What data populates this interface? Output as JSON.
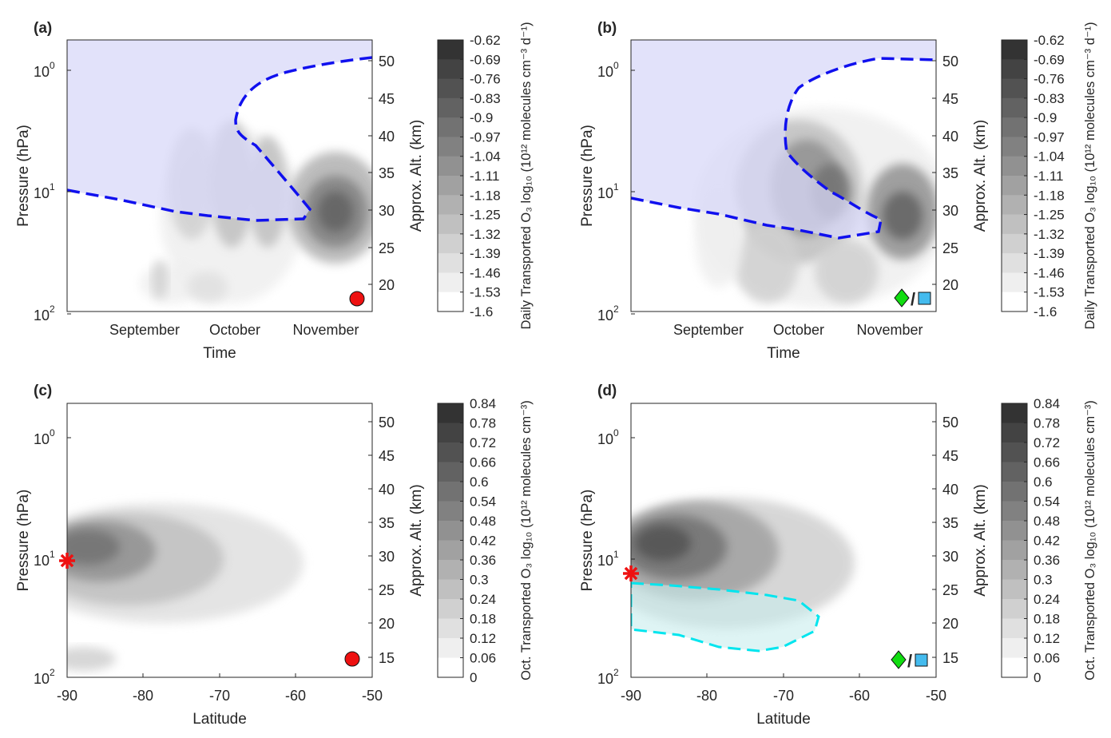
{
  "chart_data": [
    {
      "panel": "(a)",
      "type": "heatmap",
      "xlabel": "Time",
      "ylabel": "Pressure (hPa)",
      "y2label": "Approx. Alt. (km)",
      "xticks": [
        "September",
        "October",
        "November"
      ],
      "yticks": [
        {
          "base": "10",
          "exp": "0"
        },
        {
          "base": "10",
          "exp": "1"
        },
        {
          "base": "10",
          "exp": "2"
        }
      ],
      "y2ticks": [
        "50",
        "45",
        "40",
        "35",
        "30",
        "25",
        "20"
      ],
      "colorbar": {
        "label": "Daily Transported O₃ log₁₀ (10¹² molecules cm⁻³ d⁻¹)",
        "ticks": [
          "-0.62",
          "-0.69",
          "-0.76",
          "-0.83",
          "-0.9",
          "-0.97",
          "-1.04",
          "-1.11",
          "-1.18",
          "-1.25",
          "-1.32",
          "-1.39",
          "-1.46",
          "-1.53",
          "-1.6"
        ],
        "range": [
          -1.6,
          -0.62
        ]
      },
      "markers": [
        "red-circle"
      ],
      "shaded_region": "blue dashed contour (upper-left)"
    },
    {
      "panel": "(b)",
      "type": "heatmap",
      "xlabel": "Time",
      "ylabel": "Pressure (hPa)",
      "y2label": "Approx. Alt. (km)",
      "xticks": [
        "September",
        "October",
        "November"
      ],
      "yticks": [
        {
          "base": "10",
          "exp": "0"
        },
        {
          "base": "10",
          "exp": "1"
        },
        {
          "base": "10",
          "exp": "2"
        }
      ],
      "y2ticks": [
        "50",
        "45",
        "40",
        "35",
        "30",
        "25",
        "20"
      ],
      "colorbar": {
        "label": "Daily Transported O₃ log₁₀ (10¹² molecules cm⁻³ d⁻¹)",
        "ticks": [
          "-0.62",
          "-0.69",
          "-0.76",
          "-0.83",
          "-0.9",
          "-0.97",
          "-1.04",
          "-1.11",
          "-1.18",
          "-1.25",
          "-1.32",
          "-1.39",
          "-1.46",
          "-1.53",
          "-1.6"
        ],
        "range": [
          -1.6,
          -0.62
        ]
      },
      "markers": [
        "green-diamond",
        "blue-square"
      ],
      "marker_separator": "/",
      "shaded_region": "blue dashed contour (upper-left)"
    },
    {
      "panel": "(c)",
      "type": "heatmap",
      "xlabel": "Latitude",
      "ylabel": "Pressure (hPa)",
      "y2label": "Approx. Alt. (km)",
      "xticks": [
        "-90",
        "-80",
        "-70",
        "-60",
        "-50"
      ],
      "yticks": [
        {
          "base": "10",
          "exp": "0"
        },
        {
          "base": "10",
          "exp": "1"
        },
        {
          "base": "10",
          "exp": "2"
        }
      ],
      "y2ticks": [
        "50",
        "45",
        "40",
        "35",
        "30",
        "25",
        "20",
        "15"
      ],
      "colorbar": {
        "label": "Oct. Transported O₃ log₁₀ (10¹² molecules cm⁻³)",
        "ticks": [
          "0.84",
          "0.78",
          "0.72",
          "0.66",
          "0.6",
          "0.54",
          "0.48",
          "0.42",
          "0.36",
          "0.3",
          "0.24",
          "0.18",
          "0.12",
          "0.06",
          "0"
        ],
        "range": [
          0,
          0.84
        ]
      },
      "markers": [
        "red-asterisk",
        "red-circle"
      ]
    },
    {
      "panel": "(d)",
      "type": "heatmap",
      "xlabel": "Latitude",
      "ylabel": "Pressure (hPa)",
      "y2label": "Approx. Alt. (km)",
      "xticks": [
        "-90",
        "-80",
        "-70",
        "-60",
        "-50"
      ],
      "yticks": [
        {
          "base": "10",
          "exp": "0"
        },
        {
          "base": "10",
          "exp": "1"
        },
        {
          "base": "10",
          "exp": "2"
        }
      ],
      "y2ticks": [
        "50",
        "45",
        "40",
        "35",
        "30",
        "25",
        "20",
        "15"
      ],
      "colorbar": {
        "label": "Oct. Transported O₃ log₁₀ (10¹² molecules cm⁻³)",
        "ticks": [
          "0.84",
          "0.78",
          "0.72",
          "0.66",
          "0.6",
          "0.54",
          "0.48",
          "0.42",
          "0.36",
          "0.3",
          "0.24",
          "0.18",
          "0.12",
          "0.06",
          "0"
        ],
        "range": [
          0,
          0.84
        ]
      },
      "markers": [
        "red-asterisk",
        "green-diamond",
        "blue-square"
      ],
      "marker_separator": "/",
      "shaded_region": "cyan dashed contour"
    }
  ],
  "colors": {
    "blue_region": "#d8d8f8",
    "blue_dash": "#1010ee",
    "cyan_dash": "#00e5ee",
    "cyan_region": "#c8ecec",
    "red": "#ee1111",
    "green": "#11dd11",
    "square": "#44bbee"
  }
}
